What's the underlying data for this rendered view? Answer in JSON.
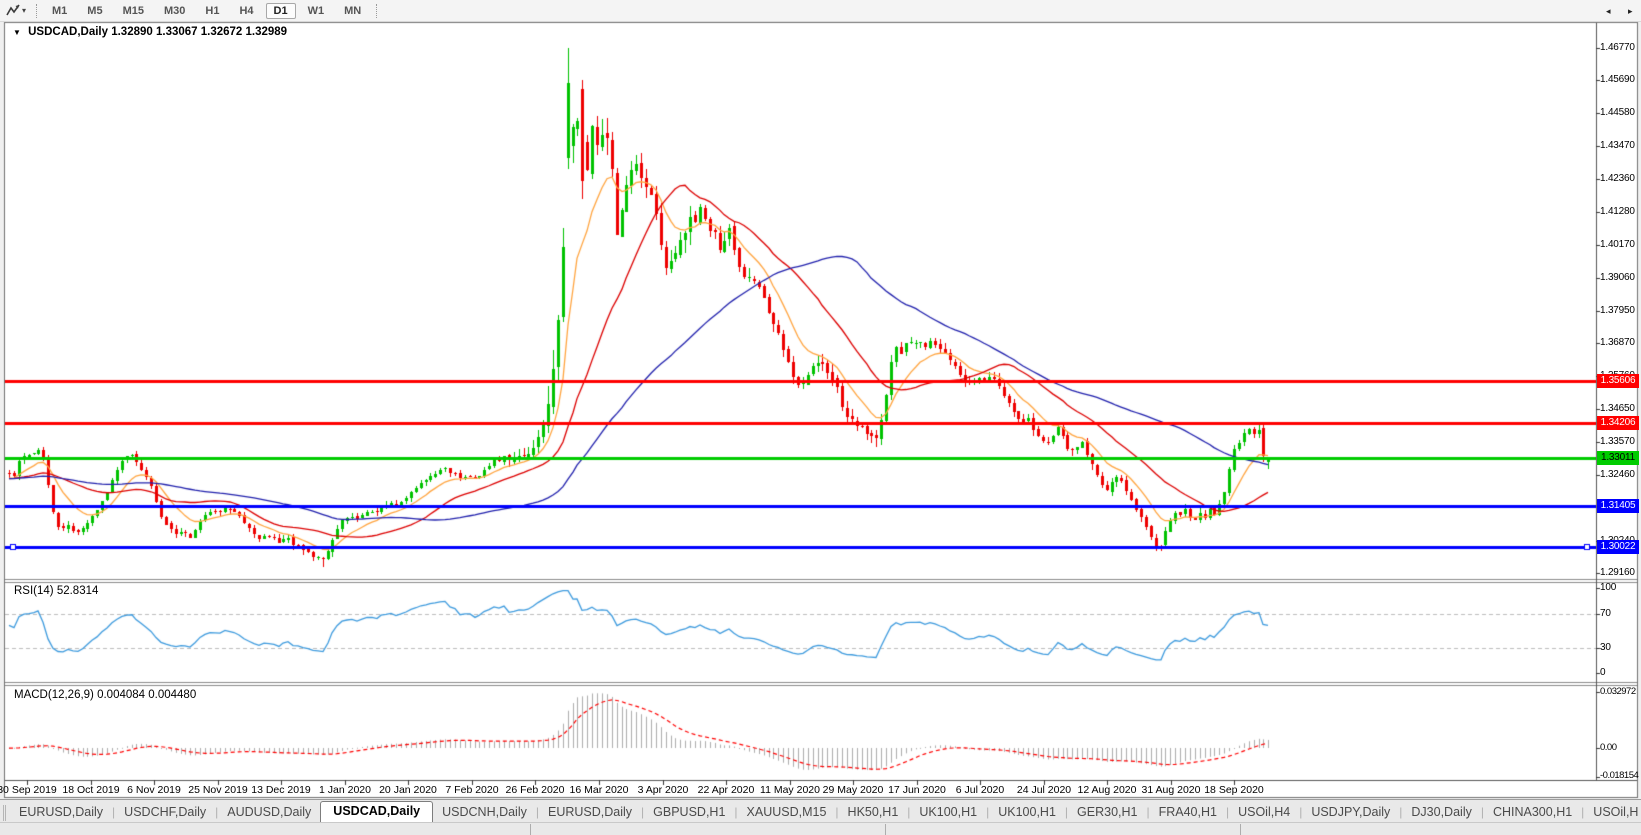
{
  "toolbar": {
    "tool_icon": "crosshair-zigzag-icon",
    "dropdown_icon": "▾",
    "timeframes": [
      "M1",
      "M5",
      "M15",
      "M30",
      "H1",
      "H4",
      "D1",
      "W1",
      "MN"
    ],
    "active_timeframe": "D1"
  },
  "chart_header": {
    "collapse_icon": "▼",
    "symbol_label": "USDCAD,Daily",
    "ohlc_label": "1.32890 1.33067 1.32672 1.32989"
  },
  "price_axis": {
    "labels": [
      "1.46770",
      "1.45690",
      "1.44580",
      "1.43470",
      "1.42360",
      "1.41280",
      "1.40170",
      "1.39060",
      "1.37950",
      "1.36870",
      "1.35760",
      "1.34650",
      "1.33570",
      "1.32460",
      "1.30240",
      "1.29160"
    ]
  },
  "hlines": [
    {
      "price": 1.35606,
      "label": "1.35606",
      "color": "#FF0000",
      "text_color": "#FFFFFF"
    },
    {
      "price": 1.34206,
      "label": "1.34206",
      "color": "#FF0000",
      "text_color": "#FFFFFF"
    },
    {
      "price": 1.33011,
      "label": "1.33011",
      "color": "#00CC00",
      "text_color": "#000000"
    },
    {
      "price": 1.31405,
      "label": "1.31405",
      "color": "#0000FF",
      "text_color": "#FFFFFF"
    },
    {
      "price": 1.30022,
      "label": "1.30022",
      "color": "#0000FF",
      "text_color": "#FFFFFF",
      "handles": true
    }
  ],
  "rsi_panel": {
    "label": "RSI(14) 52.8314",
    "period": 14,
    "value": 52.8314,
    "axis_labels": [
      "100",
      "70",
      "30",
      "0"
    ],
    "axis_values": [
      100,
      70,
      30,
      0
    ],
    "levels": [
      70,
      30
    ],
    "line_color": "#3E9BDE"
  },
  "macd_panel": {
    "label": "MACD(12,26,9) 0.004084 0.004480",
    "values": [
      0.004084,
      0.00448
    ],
    "axis_labels": [
      "0.032972",
      "0.00",
      "-0.018154"
    ],
    "axis_values": [
      0.032972,
      0,
      -0.018154
    ],
    "histogram_color": "#ADADAD",
    "signal_color": "#FF0000"
  },
  "date_axis": {
    "labels": [
      "30 Sep 2019",
      "18 Oct 2019",
      "6 Nov 2019",
      "25 Nov 2019",
      "13 Dec 2019",
      "1 Jan 2020",
      "20 Jan 2020",
      "7 Feb 2020",
      "26 Feb 2020",
      "16 Mar 2020",
      "3 Apr 2020",
      "22 Apr 2020",
      "11 May 2020",
      "29 May 2020",
      "17 Jun 2020",
      "6 Jul 2020",
      "24 Jul 2020",
      "12 Aug 2020",
      "31 Aug 2020",
      "18 Sep 2020"
    ]
  },
  "tabs": {
    "items": [
      {
        "label": "EURUSD,Daily",
        "active": false
      },
      {
        "label": "USDCHF,Daily",
        "active": false
      },
      {
        "label": "AUDUSD,Daily",
        "active": false
      },
      {
        "label": "USDCAD,Daily",
        "active": true
      },
      {
        "label": "USDCNH,Daily",
        "active": false
      },
      {
        "label": "EURUSD,Daily",
        "active": false
      },
      {
        "label": "GBPUSD,H1",
        "active": false
      },
      {
        "label": "XAUUSD,M15",
        "active": false
      },
      {
        "label": "HK50,H1",
        "active": false
      },
      {
        "label": "UK100,H1",
        "active": false
      },
      {
        "label": "UK100,H1",
        "active": false
      },
      {
        "label": "GER30,H1",
        "active": false
      },
      {
        "label": "FRA40,H1",
        "active": false
      },
      {
        "label": "USOil,H4",
        "active": false
      },
      {
        "label": "USDJPY,Daily",
        "active": false
      },
      {
        "label": "DJ30,Daily",
        "active": false
      },
      {
        "label": "CHINA300,H1",
        "active": false
      },
      {
        "label": "USOil,H",
        "active": false
      }
    ],
    "left_arrow": "◂",
    "right_arrow": "▸"
  },
  "chart_data": {
    "type": "candlestick",
    "symbol": "USDCAD",
    "timeframe": "Daily",
    "current_bar": {
      "open": 1.3289,
      "high": 1.33067,
      "low": 1.32672,
      "close": 1.32989
    },
    "visible_high": 1.4677,
    "visible_low": 1.2916,
    "up_color": "#00C200",
    "down_color": "#EE0000",
    "ma_lines": [
      {
        "name": "fast-ema",
        "type": "ema",
        "period": 10,
        "color": "#FFA540"
      },
      {
        "name": "mid-sma",
        "type": "sma",
        "period": 25,
        "color": "#DD0000"
      },
      {
        "name": "slow-sma",
        "type": "sma",
        "period": 60,
        "color": "#2121AD"
      }
    ],
    "price_path_anchors": [
      [
        9,
        1.3255
      ],
      [
        14,
        1.324
      ],
      [
        19,
        1.329
      ],
      [
        25,
        1.332
      ],
      [
        31,
        1.3305
      ],
      [
        37,
        1.333
      ],
      [
        43,
        1.3305
      ],
      [
        49,
        1.319
      ],
      [
        55,
        1.309
      ],
      [
        61,
        1.306
      ],
      [
        68,
        1.308
      ],
      [
        75,
        1.3045
      ],
      [
        82,
        1.3065
      ],
      [
        89,
        1.309
      ],
      [
        96,
        1.3125
      ],
      [
        103,
        1.316
      ],
      [
        110,
        1.321
      ],
      [
        117,
        1.3265
      ],
      [
        124,
        1.33
      ],
      [
        130,
        1.332
      ],
      [
        136,
        1.329
      ],
      [
        143,
        1.3255
      ],
      [
        150,
        1.3215
      ],
      [
        157,
        1.315
      ],
      [
        163,
        1.3085
      ],
      [
        170,
        1.306
      ],
      [
        177,
        1.304
      ],
      [
        184,
        1.3055
      ],
      [
        190,
        1.3035
      ],
      [
        197,
        1.307
      ],
      [
        204,
        1.311
      ],
      [
        211,
        1.313
      ],
      [
        218,
        1.312
      ],
      [
        225,
        1.3135
      ],
      [
        232,
        1.3125
      ],
      [
        239,
        1.3105
      ],
      [
        246,
        1.308
      ],
      [
        253,
        1.305
      ],
      [
        260,
        1.303
      ],
      [
        267,
        1.3045
      ],
      [
        274,
        1.303
      ],
      [
        281,
        1.302
      ],
      [
        288,
        1.3032
      ],
      [
        295,
        1.3008
      ],
      [
        302,
        1.2992
      ],
      [
        309,
        1.2988
      ],
      [
        316,
        1.2972
      ],
      [
        322,
        1.2958
      ],
      [
        328,
        1.299
      ],
      [
        334,
        1.3045
      ],
      [
        341,
        1.3085
      ],
      [
        348,
        1.3105
      ],
      [
        355,
        1.3098
      ],
      [
        362,
        1.3112
      ],
      [
        369,
        1.3128
      ],
      [
        376,
        1.3115
      ],
      [
        383,
        1.3142
      ],
      [
        390,
        1.3158
      ],
      [
        397,
        1.315
      ],
      [
        404,
        1.3168
      ],
      [
        411,
        1.3185
      ],
      [
        418,
        1.3208
      ],
      [
        425,
        1.3225
      ],
      [
        432,
        1.3245
      ],
      [
        439,
        1.326
      ],
      [
        446,
        1.3272
      ],
      [
        453,
        1.325
      ],
      [
        460,
        1.3235
      ],
      [
        467,
        1.3242
      ],
      [
        474,
        1.3228
      ],
      [
        481,
        1.3248
      ],
      [
        488,
        1.3278
      ],
      [
        495,
        1.3292
      ],
      [
        502,
        1.3302
      ],
      [
        509,
        1.329
      ],
      [
        516,
        1.3312
      ],
      [
        523,
        1.33
      ],
      [
        530,
        1.3325
      ],
      [
        536,
        1.3365
      ],
      [
        540,
        1.339
      ],
      [
        544,
        1.343
      ],
      [
        548,
        1.348
      ],
      [
        552,
        1.356
      ],
      [
        556,
        1.368
      ],
      [
        560,
        1.385
      ],
      [
        563,
        1.4
      ],
      [
        566,
        1.425
      ],
      [
        569,
        1.448
      ],
      [
        572,
        1.442
      ],
      [
        575,
        1.449
      ],
      [
        578,
        1.442
      ],
      [
        581,
        1.447
      ],
      [
        584,
        1.426
      ],
      [
        587,
        1.428
      ],
      [
        590,
        1.442
      ],
      [
        593,
        1.445
      ],
      [
        596,
        1.44
      ],
      [
        599,
        1.43
      ],
      [
        602,
        1.437
      ],
      [
        605,
        1.442
      ],
      [
        608,
        1.438
      ],
      [
        611,
        1.43
      ],
      [
        614,
        1.415
      ],
      [
        617,
        1.406
      ],
      [
        620,
        1.412
      ],
      [
        624,
        1.418
      ],
      [
        628,
        1.422
      ],
      [
        632,
        1.426
      ],
      [
        636,
        1.429
      ],
      [
        640,
        1.425
      ],
      [
        644,
        1.42
      ],
      [
        648,
        1.423
      ],
      [
        652,
        1.418
      ],
      [
        656,
        1.412
      ],
      [
        660,
        1.403
      ],
      [
        664,
        1.397
      ],
      [
        668,
        1.393
      ],
      [
        672,
        1.396
      ],
      [
        676,
        1.399
      ],
      [
        680,
        1.402
      ],
      [
        684,
        1.406
      ],
      [
        688,
        1.41
      ],
      [
        692,
        1.413
      ],
      [
        696,
        1.41
      ],
      [
        700,
        1.414
      ],
      [
        704,
        1.41
      ],
      [
        708,
        1.406
      ],
      [
        712,
        1.409
      ],
      [
        716,
        1.404
      ],
      [
        720,
        1.4
      ],
      [
        724,
        1.404
      ],
      [
        728,
        1.408
      ],
      [
        732,
        1.403
      ],
      [
        736,
        1.398
      ],
      [
        740,
        1.393
      ],
      [
        746,
        1.39
      ],
      [
        752,
        1.392
      ],
      [
        758,
        1.388
      ],
      [
        764,
        1.383
      ],
      [
        770,
        1.379
      ],
      [
        776,
        1.374
      ],
      [
        782,
        1.368
      ],
      [
        788,
        1.362
      ],
      [
        794,
        1.356
      ],
      [
        800,
        1.353
      ],
      [
        806,
        1.357
      ],
      [
        812,
        1.36
      ],
      [
        818,
        1.363
      ],
      [
        824,
        1.36
      ],
      [
        830,
        1.358
      ],
      [
        836,
        1.354
      ],
      [
        842,
        1.348
      ],
      [
        848,
        1.344
      ],
      [
        854,
        1.342
      ],
      [
        860,
        1.34
      ],
      [
        866,
        1.338
      ],
      [
        872,
        1.3365
      ],
      [
        878,
        1.337
      ],
      [
        884,
        1.348
      ],
      [
        890,
        1.36
      ],
      [
        896,
        1.368
      ],
      [
        902,
        1.365
      ],
      [
        908,
        1.37
      ],
      [
        914,
        1.368
      ],
      [
        920,
        1.369
      ],
      [
        926,
        1.367
      ],
      [
        932,
        1.37
      ],
      [
        938,
        1.368
      ],
      [
        944,
        1.365
      ],
      [
        950,
        1.363
      ],
      [
        956,
        1.36
      ],
      [
        962,
        1.357
      ],
      [
        968,
        1.354
      ],
      [
        974,
        1.356
      ],
      [
        980,
        1.358
      ],
      [
        986,
        1.356
      ],
      [
        992,
        1.358
      ],
      [
        998,
        1.355
      ],
      [
        1004,
        1.35
      ],
      [
        1010,
        1.347
      ],
      [
        1016,
        1.344
      ],
      [
        1022,
        1.341
      ],
      [
        1028,
        1.343
      ],
      [
        1034,
        1.339
      ],
      [
        1040,
        1.336
      ],
      [
        1046,
        1.334
      ],
      [
        1052,
        1.337
      ],
      [
        1058,
        1.34
      ],
      [
        1064,
        1.336
      ],
      [
        1070,
        1.331
      ],
      [
        1076,
        1.334
      ],
      [
        1082,
        1.336
      ],
      [
        1088,
        1.331
      ],
      [
        1094,
        1.326
      ],
      [
        1100,
        1.322
      ],
      [
        1106,
        1.319
      ],
      [
        1112,
        1.322
      ],
      [
        1118,
        1.325
      ],
      [
        1124,
        1.321
      ],
      [
        1130,
        1.317
      ],
      [
        1136,
        1.313
      ],
      [
        1142,
        1.309
      ],
      [
        1148,
        1.305
      ],
      [
        1154,
        1.301
      ],
      [
        1159,
        1.2995
      ],
      [
        1164,
        1.304
      ],
      [
        1169,
        1.309
      ],
      [
        1174,
        1.312
      ],
      [
        1179,
        1.31
      ],
      [
        1184,
        1.313
      ],
      [
        1189,
        1.311
      ],
      [
        1194,
        1.309
      ],
      [
        1199,
        1.312
      ],
      [
        1204,
        1.31
      ],
      [
        1209,
        1.313
      ],
      [
        1214,
        1.311
      ],
      [
        1219,
        1.314
      ],
      [
        1224,
        1.318
      ],
      [
        1229,
        1.326
      ],
      [
        1234,
        1.333
      ],
      [
        1239,
        1.336
      ],
      [
        1244,
        1.339
      ],
      [
        1249,
        1.3405
      ],
      [
        1254,
        1.3385
      ],
      [
        1259,
        1.3405
      ],
      [
        1263,
        1.339
      ],
      [
        1266,
        1.331
      ],
      [
        1269,
        1.3299
      ]
    ],
    "volatility_zones": [
      [
        0,
        300,
        0.002
      ],
      [
        300,
        340,
        0.0024
      ],
      [
        340,
        500,
        0.002
      ],
      [
        500,
        545,
        0.0035
      ],
      [
        545,
        620,
        0.009
      ],
      [
        620,
        700,
        0.006
      ],
      [
        700,
        770,
        0.0045
      ],
      [
        770,
        900,
        0.004
      ],
      [
        900,
        1050,
        0.0028
      ],
      [
        1050,
        1160,
        0.0026
      ],
      [
        1160,
        1270,
        0.0024
      ]
    ],
    "key_bars": {
      "322": {
        "l": 1.2937
      },
      "567": {
        "o": 1.431,
        "h": 1.4677,
        "l": 1.427,
        "c": 1.456
      },
      "584": {
        "o": 1.454,
        "h": 1.457,
        "l": 1.417,
        "c": 1.423
      },
      "1159": {
        "l": 1.299
      },
      "1264": {
        "o": 1.3402,
        "h": 1.3422,
        "l": 1.3288,
        "c": 1.3308
      },
      "1269": {
        "o": 1.3289,
        "h": 1.33067,
        "l": 1.32672,
        "c": 1.32989
      }
    }
  }
}
